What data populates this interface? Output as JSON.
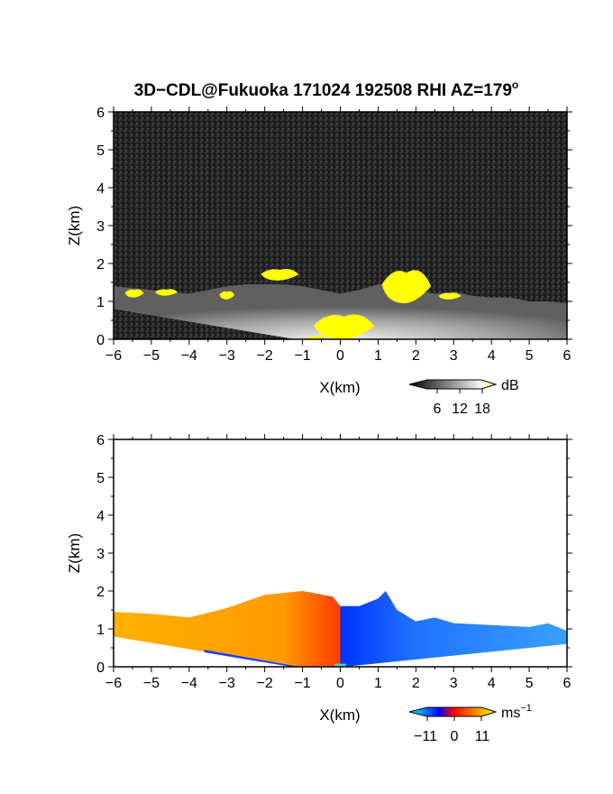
{
  "figure": {
    "title_prefix": "3D−CDL@Fukuoka 171024 192508 RHI AZ=179",
    "title_superscript": "o"
  },
  "chart_data": [
    {
      "type": "heatmap",
      "panel": "reflectivity",
      "xlabel": "X(km)",
      "ylabel": "Z(km)",
      "xlim": [
        -6,
        6
      ],
      "ylim": [
        0,
        6
      ],
      "xticks": [
        "−6",
        "−5",
        "−4",
        "−3",
        "−2",
        "−1",
        "0",
        "1",
        "2",
        "3",
        "4",
        "5",
        "6"
      ],
      "yticks": [
        "0",
        "1",
        "2",
        "3",
        "4",
        "5",
        "6"
      ],
      "background": "#222222",
      "echo_top_profile": [
        [
          -6.0,
          1.4
        ],
        [
          -5.5,
          1.35
        ],
        [
          -5.0,
          1.3
        ],
        [
          -4.5,
          1.25
        ],
        [
          -4.0,
          1.2
        ],
        [
          -3.5,
          1.3
        ],
        [
          -3.0,
          1.4
        ],
        [
          -2.5,
          1.6
        ],
        [
          -2.0,
          1.8
        ],
        [
          -1.5,
          1.7
        ],
        [
          -1.0,
          1.4
        ],
        [
          -0.5,
          1.3
        ],
        [
          0.0,
          1.2
        ],
        [
          0.5,
          1.3
        ],
        [
          1.0,
          1.6
        ],
        [
          1.2,
          2.0
        ],
        [
          1.5,
          1.6
        ],
        [
          2.0,
          1.3
        ],
        [
          2.5,
          1.2
        ],
        [
          3.0,
          1.25
        ],
        [
          3.5,
          1.15
        ],
        [
          4.0,
          1.1
        ],
        [
          4.5,
          1.1
        ],
        [
          5.0,
          1.0
        ],
        [
          5.5,
          1.0
        ],
        [
          6.0,
          0.95
        ]
      ],
      "yellow_regions": [
        {
          "x": [
            -5.7,
            -5.2
          ],
          "z": [
            1.1,
            1.35
          ]
        },
        {
          "x": [
            -4.9,
            -4.3
          ],
          "z": [
            1.15,
            1.35
          ]
        },
        {
          "x": [
            -3.2,
            -2.8
          ],
          "z": [
            1.05,
            1.3
          ]
        },
        {
          "x": [
            -2.1,
            -1.1
          ],
          "z": [
            1.55,
            1.9
          ]
        },
        {
          "x": [
            -0.7,
            0.9
          ],
          "z": [
            0.0,
            0.75
          ]
        },
        {
          "x": [
            1.1,
            2.4
          ],
          "z": [
            0.95,
            1.95
          ]
        },
        {
          "x": [
            -0.9,
            -0.4
          ],
          "z": [
            0.0,
            0.1
          ]
        },
        {
          "x": [
            2.6,
            3.2
          ],
          "z": [
            1.05,
            1.25
          ]
        }
      ],
      "colorbar": {
        "ticks": [
          "6",
          "12",
          "18"
        ],
        "unit": "dB",
        "range": [
          0,
          20
        ],
        "colors": [
          "#000000",
          "#ffffff",
          "#ffff00"
        ]
      }
    },
    {
      "type": "heatmap",
      "panel": "doppler_velocity",
      "xlabel": "X(km)",
      "ylabel": "Z(km)",
      "xlim": [
        -6,
        6
      ],
      "ylim": [
        0,
        6
      ],
      "xticks": [
        "−6",
        "−5",
        "−4",
        "−3",
        "−2",
        "−1",
        "0",
        "1",
        "2",
        "3",
        "4",
        "5",
        "6"
      ],
      "yticks": [
        "0",
        "1",
        "2",
        "3",
        "4",
        "5",
        "6"
      ],
      "background": "#ffffff",
      "echo_top_profile": [
        [
          -6.0,
          1.45
        ],
        [
          -5.0,
          1.4
        ],
        [
          -4.0,
          1.3
        ],
        [
          -3.0,
          1.55
        ],
        [
          -2.0,
          1.9
        ],
        [
          -1.0,
          2.0
        ],
        [
          -0.2,
          1.85
        ],
        [
          0.0,
          1.6
        ],
        [
          0.5,
          1.6
        ],
        [
          1.0,
          1.8
        ],
        [
          1.2,
          2.0
        ],
        [
          1.5,
          1.5
        ],
        [
          2.0,
          1.2
        ],
        [
          2.5,
          1.3
        ],
        [
          3.0,
          1.15
        ],
        [
          4.0,
          1.1
        ],
        [
          5.0,
          1.05
        ],
        [
          5.5,
          1.15
        ],
        [
          6.0,
          0.95
        ]
      ],
      "left_color": "#ffa500",
      "right_color": "#1e6fff",
      "colorbar": {
        "ticks": [
          "−11",
          "0",
          "11"
        ],
        "unit": "ms",
        "unit_exp": "−1",
        "range": [
          -15,
          15
        ],
        "colors": [
          "#00ffff",
          "#0000ff",
          "#ff0000",
          "#ffff00"
        ]
      }
    }
  ]
}
